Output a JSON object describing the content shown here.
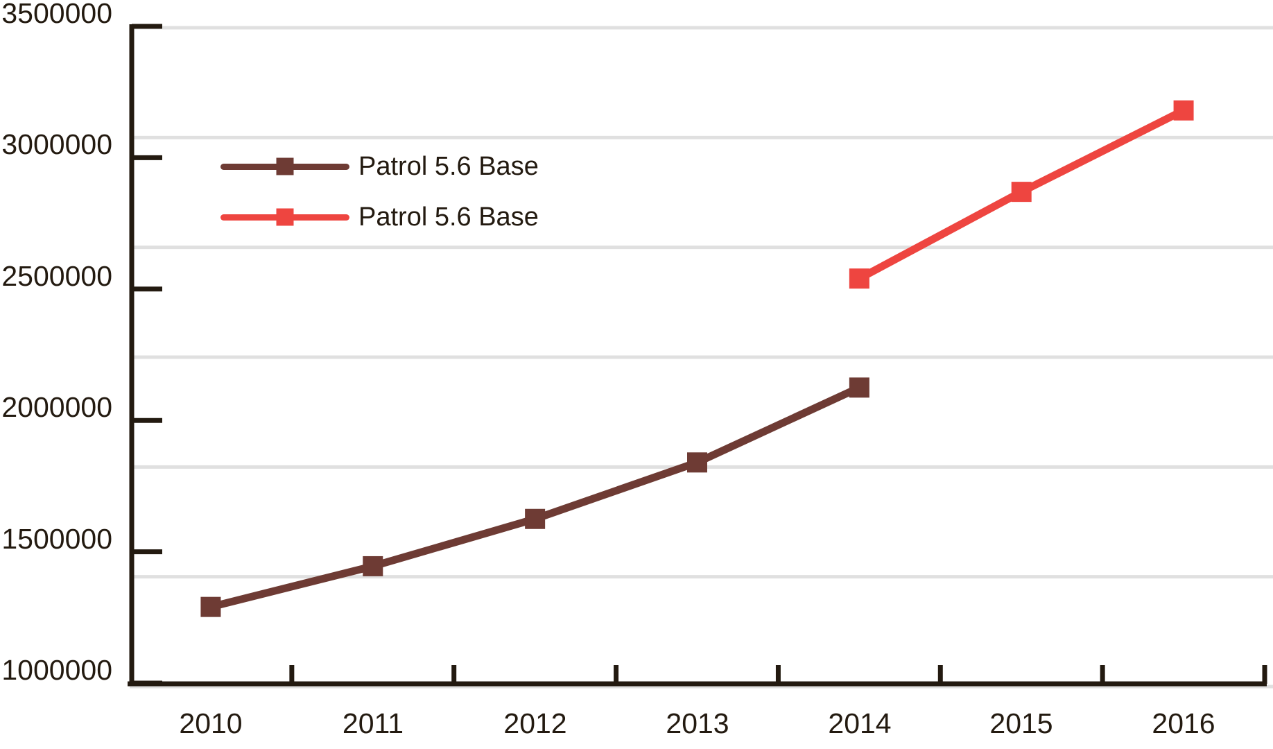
{
  "chart_data": {
    "type": "line",
    "title": "",
    "xlabel": "",
    "ylabel": "",
    "categories": [
      "2010",
      "2011",
      "2012",
      "2013",
      "2014",
      "2015",
      "2016"
    ],
    "ylim": [
      1000000,
      3500000
    ],
    "ytick_labels": [
      "3500000",
      "3000000",
      "2500000",
      "2000000",
      "1500000",
      "1000000"
    ],
    "grid": "horizontal, light gray, 6 even divisions of plot height",
    "legend_position": "inside upper-left",
    "marker": "square",
    "axis_color": "#231a10",
    "gridline_color": "#e0e0e0",
    "background_color": "#ffffff",
    "series": [
      {
        "name": "Patrol 5.6 Base",
        "color": "#6e3b34",
        "x": [
          "2010",
          "2011",
          "2012",
          "2013",
          "2014"
        ],
        "values": [
          1290000,
          1445000,
          1625000,
          1840000,
          2125000
        ]
      },
      {
        "name": "Patrol 5.6 Base",
        "color": "#ee4540",
        "x": [
          "2014",
          "2015",
          "2016"
        ],
        "values": [
          2540000,
          2870000,
          3180000
        ]
      }
    ]
  }
}
